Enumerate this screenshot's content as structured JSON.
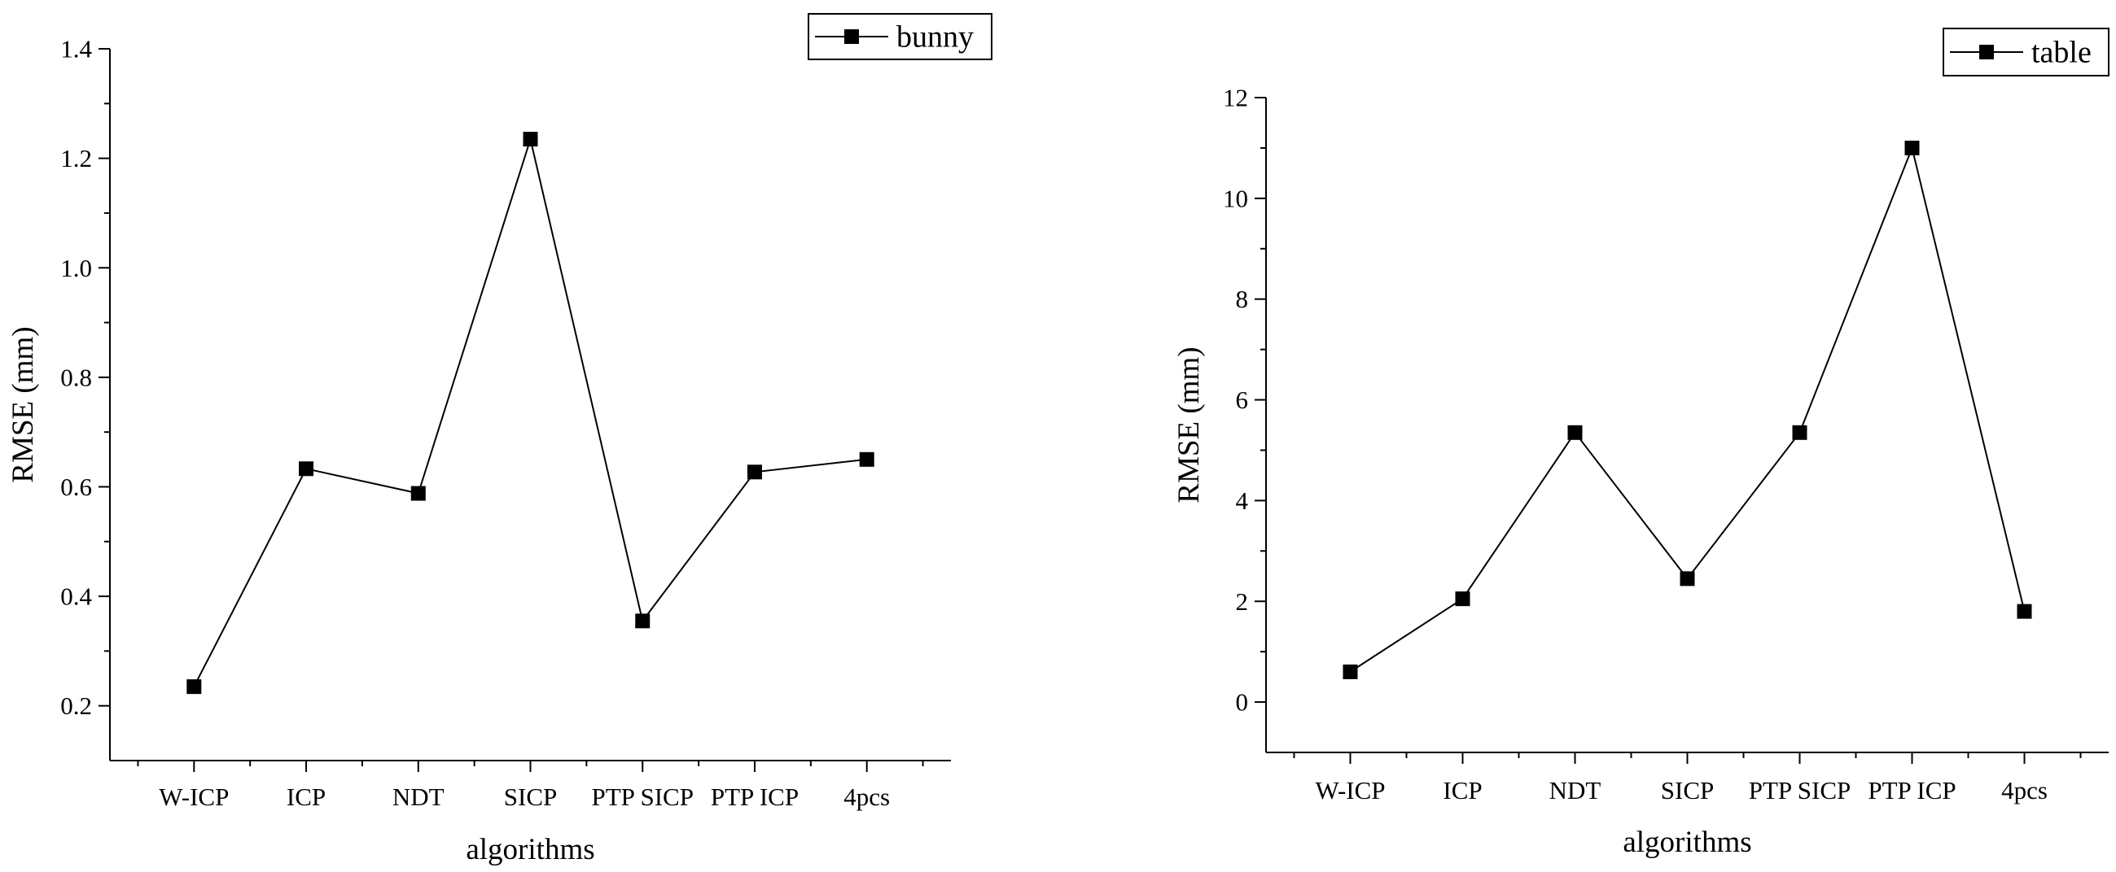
{
  "chart_data": [
    {
      "type": "line",
      "title": "",
      "xlabel": "algorithms",
      "ylabel": "RMSE (mm)",
      "categories": [
        "W-ICP",
        "ICP",
        "NDT",
        "SICP",
        "PTP SICP",
        "PTP ICP",
        "4pcs"
      ],
      "series": [
        {
          "name": "bunny",
          "values": [
            0.235,
            0.633,
            0.588,
            1.235,
            0.355,
            0.627,
            0.65
          ]
        }
      ],
      "ylim": [
        0.1,
        1.4
      ],
      "yticks": [
        "0.2",
        "0.4",
        "0.6",
        "0.8",
        "1.0",
        "1.2",
        "1.4"
      ],
      "legend_position": "top-right",
      "grid": false
    },
    {
      "type": "line",
      "title": "",
      "xlabel": "algorithms",
      "ylabel": "RMSE (mm)",
      "categories": [
        "W-ICP",
        "ICP",
        "NDT",
        "SICP",
        "PTP SICP",
        "PTP ICP",
        "4pcs"
      ],
      "series": [
        {
          "name": "table",
          "values": [
            0.6,
            2.05,
            5.35,
            2.45,
            5.35,
            11.0,
            1.8
          ]
        }
      ],
      "ylim": [
        -1,
        12
      ],
      "yticks": [
        "0",
        "2",
        "4",
        "6",
        "8",
        "10",
        "12"
      ],
      "legend_position": "top-right",
      "grid": false
    }
  ],
  "colors": {
    "line": "#000000",
    "marker": "#000000",
    "background": "#ffffff"
  }
}
